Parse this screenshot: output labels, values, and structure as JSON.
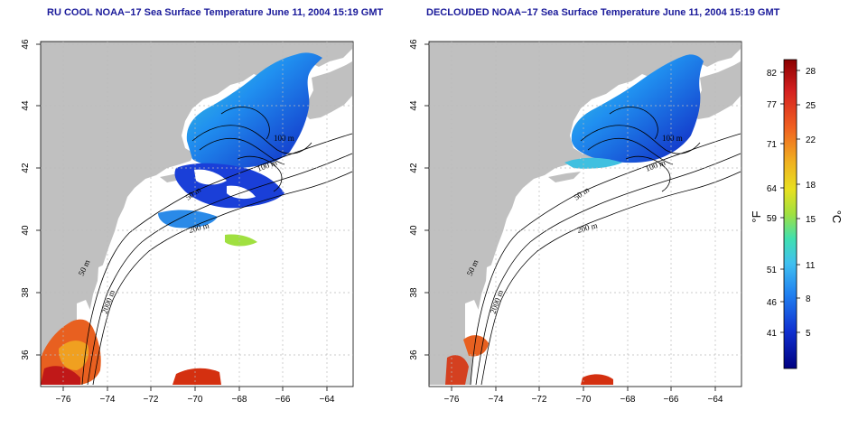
{
  "titles": {
    "left": "RU COOL NOAA−17 Sea Surface Temperature June 11, 2004 15:19 GMT",
    "right": "DECLOUDED NOAA−17 Sea Surface Temperature June 11, 2004 15:19 GMT"
  },
  "axes": {
    "x_ticks": [
      "−76",
      "−74",
      "−72",
      "−70",
      "−68",
      "−66",
      "−64"
    ],
    "y_ticks": [
      "46",
      "44",
      "42",
      "40",
      "38",
      "36"
    ]
  },
  "contour_labels": {
    "left": [
      "100 m",
      "100 m",
      "50 m",
      "200 m",
      "50 m",
      "2000 m"
    ],
    "right": [
      "100 m",
      "100 m",
      "50 m",
      "200 m",
      "50 m",
      "2000 m"
    ]
  },
  "colorbar": {
    "fahrenheit_ticks": [
      "82",
      "77",
      "71",
      "64",
      "59",
      "51",
      "46",
      "41"
    ],
    "celsius_ticks": [
      "28",
      "25",
      "22",
      "18",
      "15",
      "11",
      "8",
      "5"
    ],
    "fahrenheit_unit": "°F",
    "celsius_unit": "°C",
    "colors": [
      "#8b0000",
      "#d42020",
      "#f06020",
      "#f0b020",
      "#e8e020",
      "#a0e040",
      "#40e0b0",
      "#40c0f0",
      "#2080f0",
      "#1030d0",
      "#000080"
    ]
  },
  "colors": {
    "land": "#c0c0c0",
    "title": "#1a1a9a"
  }
}
